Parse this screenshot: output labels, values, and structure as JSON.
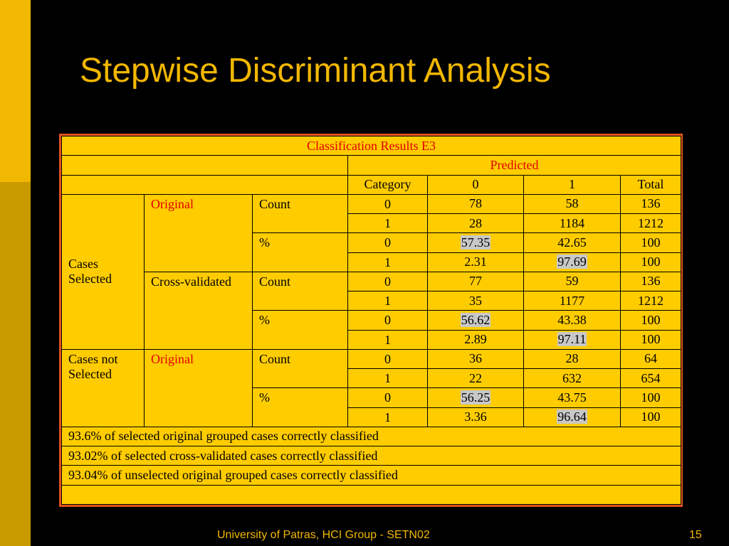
{
  "slide": {
    "title": "Stepwise Discriminant Analysis",
    "footer": "University of Patras, HCI Group -  SETN02",
    "page_number": "15"
  },
  "table": {
    "caption": "Classification Results E3",
    "predicted_label": "Predicted",
    "header": {
      "category": "Category",
      "col0": "0",
      "col1": "1",
      "total": "Total"
    },
    "groups": [
      {
        "label": "Cases Selected",
        "subgroups": [
          {
            "label": "Original",
            "rows": [
              {
                "type": "Count",
                "cat": "0",
                "v0": "78",
                "v1": "58",
                "total": "136"
              },
              {
                "type": "Count",
                "cat": "1",
                "v0": "28",
                "v1": "1184",
                "total": "1212"
              },
              {
                "type": "%",
                "cat": "0",
                "v0": "57.35",
                "v1": "42.65",
                "total": "100"
              },
              {
                "type": "%",
                "cat": "1",
                "v0": "2.31",
                "v1": "97.69",
                "total": "100"
              }
            ]
          },
          {
            "label": "Cross-validated",
            "rows": [
              {
                "type": "Count",
                "cat": "0",
                "v0": "77",
                "v1": "59",
                "total": "136"
              },
              {
                "type": "Count",
                "cat": "1",
                "v0": "35",
                "v1": "1177",
                "total": "1212"
              },
              {
                "type": "%",
                "cat": "0",
                "v0": "56.62",
                "v1": "43.38",
                "total": "100"
              },
              {
                "type": "%",
                "cat": "1",
                "v0": "2.89",
                "v1": "97.11",
                "total": "100"
              }
            ]
          }
        ]
      },
      {
        "label": "Cases not Selected",
        "subgroups": [
          {
            "label": "Original",
            "rows": [
              {
                "type": "Count",
                "cat": "0",
                "v0": "36",
                "v1": "28",
                "total": "64"
              },
              {
                "type": "Count",
                "cat": "1",
                "v0": "22",
                "v1": "632",
                "total": "654"
              },
              {
                "type": "%",
                "cat": "0",
                "v0": "56.25",
                "v1": "43.75",
                "total": "100"
              },
              {
                "type": "%",
                "cat": "1",
                "v0": "3.36",
                "v1": "96.64",
                "total": "100"
              }
            ]
          }
        ]
      }
    ],
    "notes": [
      "93.6% of selected original grouped cases correctly classified",
      "93.02% of selected cross-validated cases correctly classified",
      "93.04% of unselected original grouped cases correctly classified"
    ]
  }
}
